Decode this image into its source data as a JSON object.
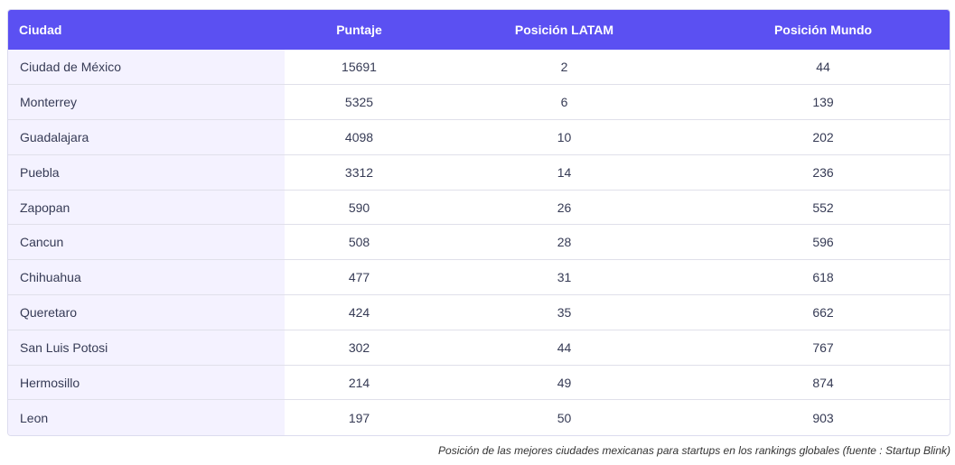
{
  "table": {
    "headers": {
      "city": "Ciudad",
      "score": "Puntaje",
      "latam": "Posición LATAM",
      "world": "Posición Mundo"
    },
    "rows": [
      {
        "city": "Ciudad de México",
        "score": "15691",
        "latam": "2",
        "world": "44"
      },
      {
        "city": "Monterrey",
        "score": "5325",
        "latam": "6",
        "world": "139"
      },
      {
        "city": "Guadalajara",
        "score": "4098",
        "latam": "10",
        "world": "202"
      },
      {
        "city": "Puebla",
        "score": "3312",
        "latam": "14",
        "world": "236"
      },
      {
        "city": "Zapopan",
        "score": "590",
        "latam": "26",
        "world": "552"
      },
      {
        "city": "Cancun",
        "score": "508",
        "latam": "28",
        "world": "596"
      },
      {
        "city": "Chihuahua",
        "score": "477",
        "latam": "31",
        "world": "618"
      },
      {
        "city": "Queretaro",
        "score": "424",
        "latam": "35",
        "world": "662"
      },
      {
        "city": "San Luis Potosi",
        "score": "302",
        "latam": "44",
        "world": "767"
      },
      {
        "city": "Hermosillo",
        "score": "214",
        "latam": "49",
        "world": "874"
      },
      {
        "city": "Leon",
        "score": "197",
        "latam": "50",
        "world": "903"
      }
    ]
  },
  "caption": "Posición de las mejores ciudades mexicanas para startups en los rankings globales (fuente : Startup Blink)",
  "colors": {
    "header_bg": "#5b50f2",
    "first_col_bg": "#f4f2ff"
  }
}
